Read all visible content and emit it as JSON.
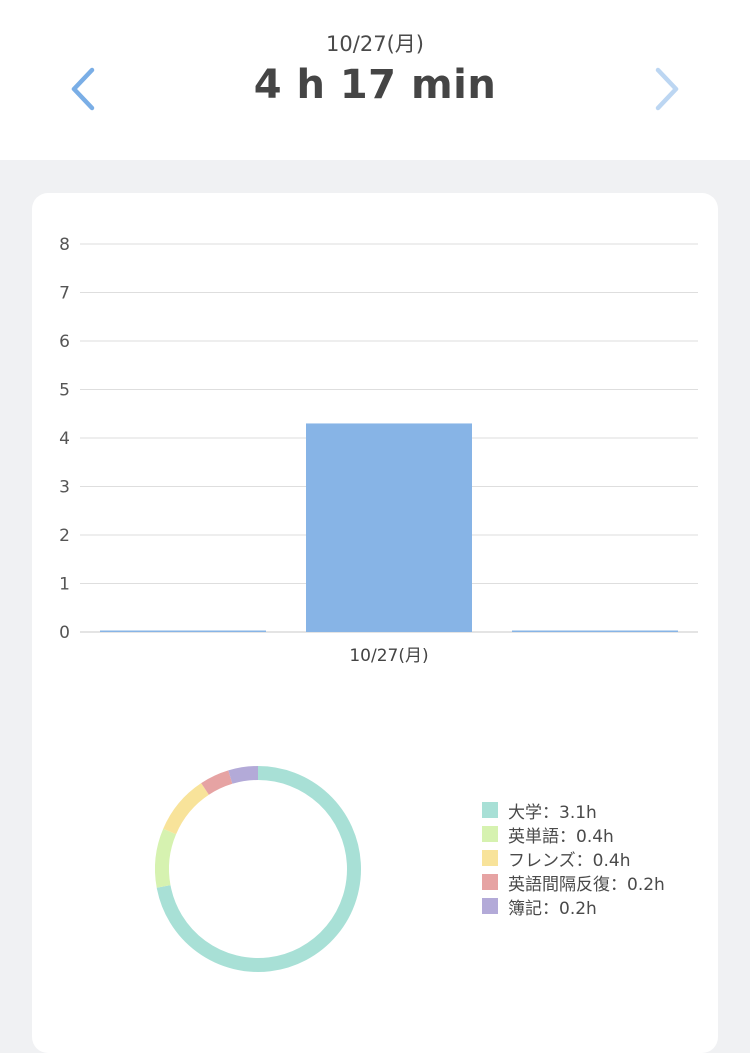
{
  "header": {
    "date": "10/27(月)",
    "total": "4 h 17 min",
    "prev_icon": "chevron-left-icon",
    "next_icon": "chevron-right-icon",
    "nav_color": "#7aaee6",
    "nav_color_disabled": "#bcd6f2"
  },
  "chart_data": [
    {
      "type": "bar",
      "categories": [
        "",
        "10/27(月)",
        ""
      ],
      "values": [
        0,
        4.3,
        0
      ],
      "ylim": [
        0,
        8
      ],
      "yticks": [
        0,
        1,
        2,
        3,
        4,
        5,
        6,
        7,
        8
      ],
      "grid": true,
      "color": "#87b4e6"
    },
    {
      "type": "pie",
      "donut": true,
      "slices": [
        {
          "label": "大学",
          "value": 3.1,
          "text": "大学：3.1h",
          "color": "#a8e0d6"
        },
        {
          "label": "英単語",
          "value": 0.4,
          "text": "英単語：0.4h",
          "color": "#d6f2b0"
        },
        {
          "label": "フレンズ",
          "value": 0.4,
          "text": "フレンズ：0.4h",
          "color": "#f8e39a"
        },
        {
          "label": "英語間隔反復",
          "value": 0.2,
          "text": "英語間隔反復：0.2h",
          "color": "#e6a3a3"
        },
        {
          "label": "簿記",
          "value": 0.2,
          "text": "簿記：0.2h",
          "color": "#b3aad8"
        }
      ],
      "legend_position": "right"
    }
  ]
}
